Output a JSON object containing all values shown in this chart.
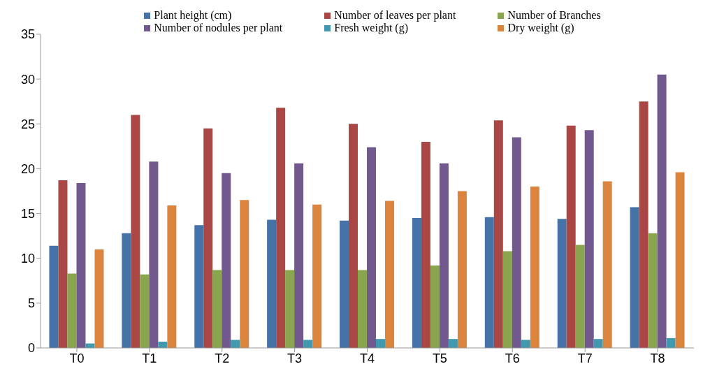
{
  "chart_data": {
    "type": "bar",
    "categories": [
      "T0",
      "T1",
      "T2",
      "T3",
      "T4",
      "T5",
      "T6",
      "T7",
      "T8"
    ],
    "series": [
      {
        "name": "Plant height (cm)",
        "color": "#4572a7",
        "values": [
          11.4,
          12.8,
          13.7,
          14.3,
          14.2,
          14.5,
          14.6,
          14.4,
          15.7
        ]
      },
      {
        "name": "Number of leaves per plant",
        "color": "#aa4643",
        "values": [
          18.7,
          26.0,
          24.5,
          26.8,
          25.0,
          23.0,
          25.4,
          24.8,
          27.5
        ]
      },
      {
        "name": "Number of Branches",
        "color": "#89a54e",
        "values": [
          8.3,
          8.2,
          8.7,
          8.7,
          8.7,
          9.2,
          10.8,
          11.5,
          12.8
        ]
      },
      {
        "name": "Number of nodules per plant",
        "color": "#71588f",
        "values": [
          18.4,
          20.8,
          19.5,
          20.6,
          22.4,
          20.6,
          23.5,
          24.3,
          30.5
        ]
      },
      {
        "name": "Fresh weight (g)",
        "color": "#4198af",
        "values": [
          0.5,
          0.7,
          0.9,
          0.9,
          1.0,
          1.0,
          0.9,
          1.0,
          1.1
        ]
      },
      {
        "name": "Dry weight (g)",
        "color": "#db843d",
        "values": [
          11.0,
          15.9,
          16.5,
          16.0,
          16.4,
          17.5,
          18.0,
          18.6,
          19.6
        ]
      }
    ],
    "ylim": [
      0,
      35
    ],
    "yticks": [
      0,
      5,
      10,
      15,
      20,
      25,
      30,
      35
    ],
    "grid": false,
    "legend": "top"
  }
}
